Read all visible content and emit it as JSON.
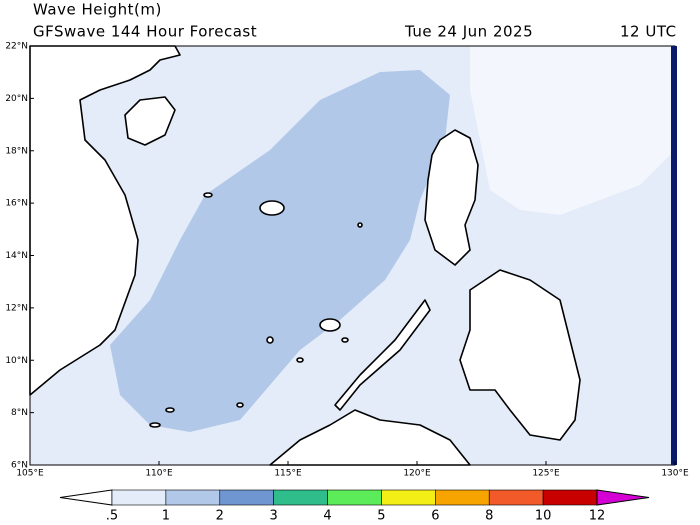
{
  "header": {
    "title": "Wave Height(m)",
    "subtitle": "GFSwave 144 Hour Forecast",
    "date": "Tue 24 Jun 2025",
    "time": "12 UTC"
  },
  "map": {
    "lonlim": [
      105,
      130
    ],
    "latlim": [
      6,
      22
    ],
    "lon_ticks": [
      {
        "value": 105,
        "label": "105°E"
      },
      {
        "value": 110,
        "label": "110°E"
      },
      {
        "value": 115,
        "label": "115°E"
      },
      {
        "value": 120,
        "label": "120°E"
      },
      {
        "value": 125,
        "label": "125°E"
      },
      {
        "value": 130,
        "label": "130°E"
      }
    ],
    "lat_ticks": [
      {
        "value": 6,
        "label": "6°N"
      },
      {
        "value": 8,
        "label": "8°N"
      },
      {
        "value": 10,
        "label": "10°N"
      },
      {
        "value": 12,
        "label": "12°N"
      },
      {
        "value": 14,
        "label": "14°N"
      },
      {
        "value": 16,
        "label": "16°N"
      },
      {
        "value": 18,
        "label": "18°N"
      },
      {
        "value": 20,
        "label": "20°N"
      },
      {
        "value": 22,
        "label": "22°N"
      }
    ]
  },
  "colorbar": {
    "levels": [
      {
        "value": 0.5,
        "label": ".5"
      },
      1,
      2,
      3,
      4,
      5,
      6,
      8,
      10,
      12
    ],
    "colors": [
      "#ffffff",
      "#e3ecf8",
      "#b2c8e8",
      "#6f96d1",
      "#2fbd8c",
      "#5cec5a",
      "#f3ee16",
      "#f7a400",
      "#f25a2a",
      "#c80000",
      "#d400d4"
    ]
  }
}
